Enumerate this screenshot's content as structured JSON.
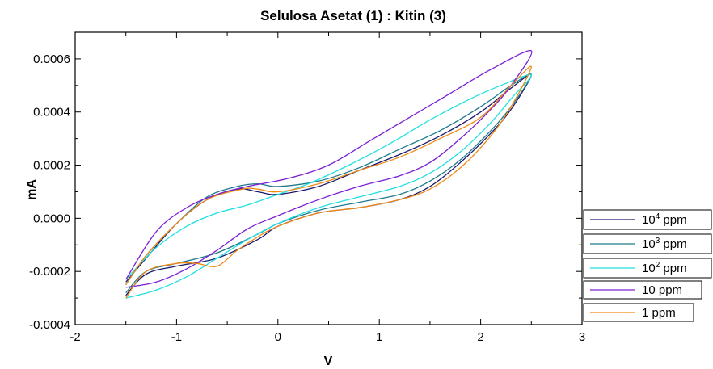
{
  "chart_data": {
    "type": "line",
    "title": "Selulosa Asetat (1) : Kitin (3)",
    "xlabel": "V",
    "ylabel": "mA",
    "xlim": [
      -2,
      3
    ],
    "ylim": [
      -0.0004,
      0.0007
    ],
    "x_ticks": [
      "-2",
      "-1",
      "0",
      "1",
      "2",
      "3"
    ],
    "y_ticks": [
      "-0.0004",
      "-0.0002",
      "0.0000",
      "0.0002",
      "0.0004",
      "0.0006"
    ],
    "grid": false,
    "legend_position": "right",
    "series": [
      {
        "name": "10⁴ ppm",
        "label_base": "10",
        "label_sup": "4",
        "label_unit": " ppm",
        "color": "#1a1a6e",
        "points": [
          [
            -1.5,
            -0.00029
          ],
          [
            -1.3,
            -0.00021
          ],
          [
            -1.0,
            -0.00018
          ],
          [
            -0.6,
            -0.00015
          ],
          [
            -0.2,
            -8e-05
          ],
          [
            0.0,
            -3e-05
          ],
          [
            0.4,
            2e-05
          ],
          [
            0.8,
            4e-05
          ],
          [
            1.2,
            7e-05
          ],
          [
            1.5,
            0.00012
          ],
          [
            1.8,
            0.00021
          ],
          [
            2.1,
            0.00032
          ],
          [
            2.3,
            0.00041
          ],
          [
            2.5,
            0.00054
          ],
          [
            2.3,
            0.00049
          ],
          [
            2.0,
            0.0004
          ],
          [
            1.6,
            0.00031
          ],
          [
            1.2,
            0.00024
          ],
          [
            0.8,
            0.00018
          ],
          [
            0.4,
            0.00012
          ],
          [
            0.0,
            9e-05
          ],
          [
            -0.2,
            0.0001
          ],
          [
            -0.4,
            0.00011
          ],
          [
            -0.7,
            7e-05
          ],
          [
            -1.0,
            -2e-05
          ],
          [
            -1.3,
            -0.00015
          ],
          [
            -1.5,
            -0.00024
          ]
        ]
      },
      {
        "name": "10³ ppm",
        "label_base": "10",
        "label_sup": "3",
        "label_unit": " ppm",
        "color": "#1f7a8c",
        "points": [
          [
            -1.5,
            -0.00028
          ],
          [
            -1.3,
            -0.0002
          ],
          [
            -1.0,
            -0.00017
          ],
          [
            -0.6,
            -0.00013
          ],
          [
            -0.2,
            -6e-05
          ],
          [
            0.0,
            -2e-05
          ],
          [
            0.4,
            3e-05
          ],
          [
            0.8,
            6e-05
          ],
          [
            1.2,
            9e-05
          ],
          [
            1.5,
            0.00014
          ],
          [
            1.8,
            0.00022
          ],
          [
            2.1,
            0.00033
          ],
          [
            2.3,
            0.00042
          ],
          [
            2.5,
            0.00054
          ],
          [
            2.3,
            0.0005
          ],
          [
            2.0,
            0.00042
          ],
          [
            1.6,
            0.00033
          ],
          [
            1.2,
            0.00026
          ],
          [
            0.8,
            0.00019
          ],
          [
            0.4,
            0.00014
          ],
          [
            0.0,
            0.00012
          ],
          [
            -0.2,
            0.00013
          ],
          [
            -0.4,
            0.00012
          ],
          [
            -0.7,
            8e-05
          ],
          [
            -1.0,
            -2e-05
          ],
          [
            -1.3,
            -0.00014
          ],
          [
            -1.5,
            -0.00025
          ]
        ]
      },
      {
        "name": "10² ppm",
        "label_base": "10",
        "label_sup": "2",
        "label_unit": " ppm",
        "color": "#22e0e0",
        "points": [
          [
            -1.5,
            -0.0003
          ],
          [
            -1.2,
            -0.00027
          ],
          [
            -0.9,
            -0.00022
          ],
          [
            -0.6,
            -0.00015
          ],
          [
            -0.3,
            -8e-05
          ],
          [
            0.0,
            -2e-05
          ],
          [
            0.4,
            4e-05
          ],
          [
            0.8,
            8e-05
          ],
          [
            1.2,
            0.00012
          ],
          [
            1.5,
            0.00017
          ],
          [
            1.8,
            0.00025
          ],
          [
            2.1,
            0.00036
          ],
          [
            2.3,
            0.00045
          ],
          [
            2.5,
            0.00054
          ],
          [
            2.2,
            0.0005
          ],
          [
            1.9,
            0.00045
          ],
          [
            1.5,
            0.00037
          ],
          [
            1.1,
            0.00028
          ],
          [
            0.7,
            0.0002
          ],
          [
            0.3,
            0.00013
          ],
          [
            0.0,
            9e-05
          ],
          [
            -0.3,
            5e-05
          ],
          [
            -0.6,
            2e-05
          ],
          [
            -0.9,
            -3e-05
          ],
          [
            -1.2,
            -0.00011
          ],
          [
            -1.5,
            -0.00023
          ]
        ]
      },
      {
        "name": "10 ppm",
        "label_base": "10",
        "label_sup": "",
        "label_unit": " ppm",
        "color": "#7a1fd6",
        "points": [
          [
            -1.5,
            -0.00026
          ],
          [
            -1.2,
            -0.00024
          ],
          [
            -0.9,
            -0.00019
          ],
          [
            -0.6,
            -0.00012
          ],
          [
            -0.3,
            -4e-05
          ],
          [
            0.0,
            1e-05
          ],
          [
            0.4,
            7e-05
          ],
          [
            0.8,
            0.00012
          ],
          [
            1.2,
            0.00016
          ],
          [
            1.5,
            0.00021
          ],
          [
            1.8,
            0.0003
          ],
          [
            2.1,
            0.00041
          ],
          [
            2.3,
            0.0005
          ],
          [
            2.5,
            0.00063
          ],
          [
            2.1,
            0.00056
          ],
          [
            1.7,
            0.00047
          ],
          [
            1.3,
            0.00038
          ],
          [
            0.9,
            0.00029
          ],
          [
            0.5,
            0.0002
          ],
          [
            0.1,
            0.00015
          ],
          [
            -0.3,
            0.00012
          ],
          [
            -0.6,
            9e-05
          ],
          [
            -0.9,
            4e-05
          ],
          [
            -1.2,
            -5e-05
          ],
          [
            -1.5,
            -0.00023
          ]
        ]
      },
      {
        "name": "1 ppm",
        "label_base": "1",
        "label_sup": "",
        "label_unit": " ppm",
        "color": "#ef8a17",
        "points": [
          [
            -1.5,
            -0.0003
          ],
          [
            -1.3,
            -0.0002
          ],
          [
            -1.0,
            -0.00017
          ],
          [
            -0.8,
            -0.00017
          ],
          [
            -0.6,
            -0.00018
          ],
          [
            -0.4,
            -0.00012
          ],
          [
            -0.2,
            -7e-05
          ],
          [
            0.0,
            -3e-05
          ],
          [
            0.4,
            2e-05
          ],
          [
            0.8,
            4e-05
          ],
          [
            1.2,
            7e-05
          ],
          [
            1.5,
            0.00011
          ],
          [
            1.8,
            0.00019
          ],
          [
            2.1,
            0.00031
          ],
          [
            2.3,
            0.00042
          ],
          [
            2.5,
            0.00057
          ],
          [
            2.3,
            0.0005
          ],
          [
            2.0,
            0.00038
          ],
          [
            1.6,
            0.0003
          ],
          [
            1.2,
            0.00023
          ],
          [
            0.8,
            0.00018
          ],
          [
            0.4,
            0.00013
          ],
          [
            0.0,
            0.0001
          ],
          [
            -0.2,
            0.00011
          ],
          [
            -0.35,
            0.00011
          ],
          [
            -0.7,
            7e-05
          ],
          [
            -1.0,
            -2e-05
          ],
          [
            -1.3,
            -0.00014
          ],
          [
            -1.5,
            -0.00025
          ]
        ]
      }
    ]
  }
}
